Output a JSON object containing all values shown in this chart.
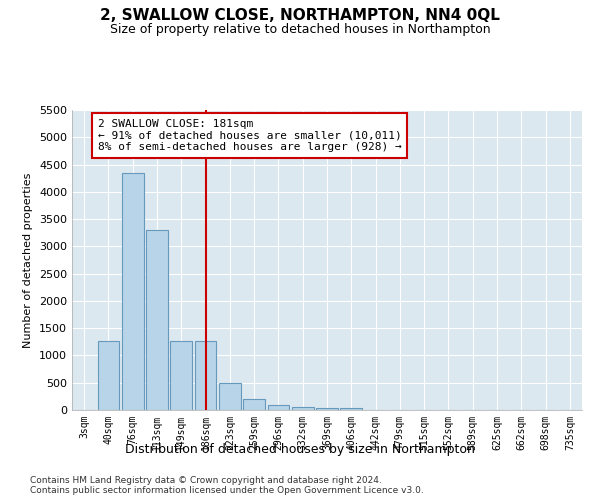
{
  "title": "2, SWALLOW CLOSE, NORTHAMPTON, NN4 0QL",
  "subtitle": "Size of property relative to detached houses in Northampton",
  "xlabel": "Distribution of detached houses by size in Northampton",
  "ylabel": "Number of detached properties",
  "footer_line1": "Contains HM Land Registry data © Crown copyright and database right 2024.",
  "footer_line2": "Contains public sector information licensed under the Open Government Licence v3.0.",
  "bar_labels": [
    "3sqm",
    "40sqm",
    "76sqm",
    "113sqm",
    "149sqm",
    "186sqm",
    "223sqm",
    "259sqm",
    "296sqm",
    "332sqm",
    "369sqm",
    "406sqm",
    "442sqm",
    "479sqm",
    "515sqm",
    "552sqm",
    "589sqm",
    "625sqm",
    "662sqm",
    "698sqm",
    "735sqm"
  ],
  "bar_values": [
    0,
    1270,
    4350,
    3300,
    1270,
    1270,
    490,
    200,
    100,
    60,
    40,
    40,
    0,
    0,
    0,
    0,
    0,
    0,
    0,
    0,
    0
  ],
  "bar_color": "#b8d4e8",
  "bar_edge_color": "#6699bb",
  "vline_x": 5,
  "vline_color": "#cc0000",
  "annotation_title": "2 SWALLOW CLOSE: 181sqm",
  "annotation_line1": "← 91% of detached houses are smaller (10,011)",
  "annotation_line2": "8% of semi-detached houses are larger (928) →",
  "annotation_box_color": "#ffffff",
  "annotation_border_color": "#cc0000",
  "ylim": [
    0,
    5500
  ],
  "yticks": [
    0,
    500,
    1000,
    1500,
    2000,
    2500,
    3000,
    3500,
    4000,
    4500,
    5000,
    5500
  ],
  "bg_color": "#dce8f0",
  "plot_bg_color": "#dce8f0"
}
